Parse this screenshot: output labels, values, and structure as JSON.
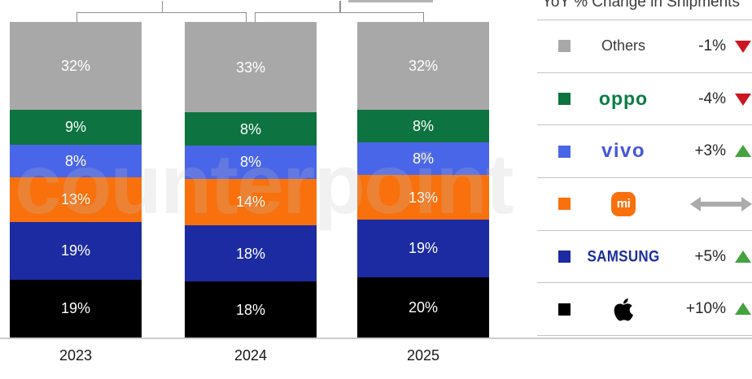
{
  "watermark": "counterpoint",
  "legend": {
    "header": "YoY % Change in Shipments",
    "rows": [
      {
        "label": "Others",
        "display": "text",
        "text": "Others",
        "swatch": "#a8a8a8",
        "change": "-1%",
        "trend": "down"
      },
      {
        "label": "OPPO",
        "display": "oppo",
        "text": "oppo",
        "swatch": "#0d7340",
        "change": "-4%",
        "trend": "down"
      },
      {
        "label": "vivo",
        "display": "vivo",
        "text": "vivo",
        "swatch": "#4a66e8",
        "change": "+3%",
        "trend": "up"
      },
      {
        "label": "Xiaomi",
        "display": "mi",
        "text": "mi",
        "swatch": "#f8710d",
        "change": "",
        "trend": "flat"
      },
      {
        "label": "Samsung",
        "display": "samsung",
        "text": "SAMSUNG",
        "swatch": "#1c2ba1",
        "change": "+5%",
        "trend": "up"
      },
      {
        "label": "Apple",
        "display": "apple",
        "text": "",
        "swatch": "#000000",
        "change": "+10%",
        "trend": "up"
      }
    ],
    "trend_colors": {
      "up": "#45a33f",
      "down": "#cc1722",
      "flat": "#ababab"
    }
  },
  "chart_data": {
    "type": "bar",
    "stacked": true,
    "unit": "%",
    "categories": [
      "2023",
      "2024",
      "2025"
    ],
    "series": [
      {
        "name": "Others",
        "values": [
          32,
          33,
          32
        ],
        "color": "#a8a8a8",
        "yoy_change": "-1%"
      },
      {
        "name": "OPPO",
        "values": [
          9,
          8,
          8
        ],
        "color": "#0d7340",
        "yoy_change": "-4%"
      },
      {
        "name": "vivo",
        "values": [
          8,
          8,
          8
        ],
        "color": "#4a66e8",
        "yoy_change": "+3%"
      },
      {
        "name": "Xiaomi",
        "values": [
          13,
          14,
          13
        ],
        "color": "#f8710d",
        "yoy_change": "0%"
      },
      {
        "name": "Samsung",
        "values": [
          19,
          18,
          19
        ],
        "color": "#1c2ba1",
        "yoy_change": "+5%"
      },
      {
        "name": "Apple",
        "values": [
          19,
          18,
          20
        ],
        "color": "#000000",
        "yoy_change": "+10%"
      }
    ],
    "order_top_to_bottom": [
      "Others",
      "OPPO",
      "vivo",
      "Xiaomi",
      "Samsung",
      "Apple"
    ],
    "legend_header": "YoY % Change in Shipments",
    "ylim": [
      0,
      100
    ],
    "grid": false,
    "legend_position": "right",
    "comparison_brackets": [
      {
        "between": [
          "2023",
          "2024"
        ]
      },
      {
        "between": [
          "2024",
          "2025"
        ]
      }
    ]
  }
}
